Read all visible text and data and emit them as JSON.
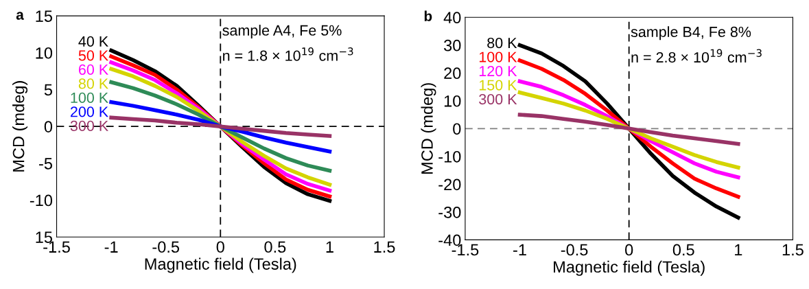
{
  "chart_data": [
    {
      "type": "line",
      "title": "a",
      "xlabel": "Magnetic field (Tesla)",
      "ylabel": "MCD (mdeg)",
      "x": [
        -1,
        -0.8,
        -0.6,
        -0.4,
        -0.2,
        0,
        0.2,
        0.4,
        0.6,
        0.8,
        1
      ],
      "series": [
        {
          "name": "40 K",
          "color": "#000000",
          "values": [
            10.3,
            9,
            7.5,
            5.5,
            2.8,
            0,
            -2.8,
            -5.5,
            -7.7,
            -9.2,
            -10.1
          ]
        },
        {
          "name": "50 K",
          "color": "#ff0000",
          "values": [
            9.5,
            8.3,
            7,
            5,
            2.6,
            0,
            -2.6,
            -5,
            -7.2,
            -8.6,
            -9.5
          ]
        },
        {
          "name": "60 K",
          "color": "#ff00ff",
          "values": [
            8.7,
            7.6,
            6.3,
            4.5,
            2.4,
            0,
            -2.4,
            -4.5,
            -6.5,
            -7.8,
            -8.7
          ]
        },
        {
          "name": "80 K",
          "color": "#d4d400",
          "values": [
            7.8,
            6.8,
            5.5,
            4,
            2.1,
            0,
            -2.1,
            -4,
            -5.7,
            -6.9,
            -7.9
          ]
        },
        {
          "name": "100 K",
          "color": "#2e8b57",
          "values": [
            6,
            5.2,
            4.2,
            3,
            1.6,
            0,
            -1.5,
            -3,
            -4.3,
            -5.3,
            -6
          ]
        },
        {
          "name": "200 K",
          "color": "#0000ff",
          "values": [
            3.3,
            2.8,
            2.2,
            1.6,
            0.9,
            0,
            -0.7,
            -1.5,
            -2.2,
            -2.8,
            -3.4
          ]
        },
        {
          "name": "300 K",
          "color": "#993366",
          "values": [
            1.2,
            1,
            0.8,
            0.5,
            0.3,
            0,
            -0.3,
            -0.6,
            -0.9,
            -1.1,
            -1.3
          ]
        }
      ],
      "xlim": [
        -1.5,
        1.5
      ],
      "xticks": [
        -1.5,
        -1,
        -0.5,
        0,
        0.5,
        1,
        1.5
      ],
      "ylim": [
        -15,
        15
      ],
      "yticks": [
        15,
        10,
        5,
        0,
        -5,
        -10,
        {
          "value": -15,
          "label": "15"
        }
      ],
      "ref_lines": [
        {
          "axis": "x",
          "value": 0,
          "color": "#000000",
          "line_style": "dashed"
        },
        {
          "axis": "y",
          "value": 0,
          "color": "#000000",
          "line_style": "dashed"
        }
      ],
      "annotations": [
        "sample A4, Fe 5%",
        "n = 1.8 × 10$^{19}$ cm$^{−3}$"
      ],
      "legend": "top left",
      "grid": false,
      "line_style": "solid",
      "marker": "none"
    },
    {
      "type": "line",
      "title": "b",
      "xlabel": "Magnetic field (Tesla)",
      "ylabel": "MCD (mdeg)",
      "x": [
        -1,
        -0.8,
        -0.6,
        -0.4,
        -0.2,
        0,
        0.2,
        0.4,
        0.6,
        0.8,
        1
      ],
      "series": [
        {
          "name": "80 K",
          "color": "#000000",
          "values": [
            30,
            27,
            22.5,
            17,
            9,
            0,
            -9,
            -17,
            -23,
            -28,
            -32
          ]
        },
        {
          "name": "100 K",
          "color": "#ff0000",
          "values": [
            24.5,
            21.5,
            17.5,
            12.5,
            6.5,
            0,
            -6.5,
            -12.5,
            -18,
            -21.5,
            -24.5
          ]
        },
        {
          "name": "120 K",
          "color": "#ff00ff",
          "values": [
            17,
            15,
            12,
            8.5,
            4.5,
            0,
            -4.5,
            -8.5,
            -12.5,
            -15.5,
            -17.5
          ]
        },
        {
          "name": "150 K",
          "color": "#d4d400",
          "values": [
            13,
            11,
            9,
            6.5,
            3.5,
            0,
            -3.5,
            -6.5,
            -9.5,
            -12,
            -14
          ]
        },
        {
          "name": "300 K",
          "color": "#993366",
          "values": [
            5,
            4.5,
            3.5,
            2.5,
            1.3,
            0,
            -1.3,
            -2.5,
            -3.5,
            -4.5,
            -5.5
          ]
        }
      ],
      "xlim": [
        -1.5,
        1.5
      ],
      "xticks": [
        -1.5,
        -1,
        -0.5,
        0,
        0.5,
        1,
        1.5
      ],
      "ylim": [
        -40,
        40
      ],
      "yticks": [
        40,
        30,
        20,
        10,
        0,
        -10,
        -20,
        -30,
        -40
      ],
      "ref_lines": [
        {
          "axis": "x",
          "value": 0,
          "color": "#000000",
          "line_style": "dashed"
        },
        {
          "axis": "y",
          "value": 0,
          "color": "#808080",
          "line_style": "dashed"
        }
      ],
      "annotations": [
        "sample B4, Fe 8%",
        "n = 2.8 × 10$^{19}$ cm$^{−3}$"
      ],
      "legend": "top left",
      "grid": false,
      "line_style": "solid",
      "marker": "none"
    }
  ]
}
